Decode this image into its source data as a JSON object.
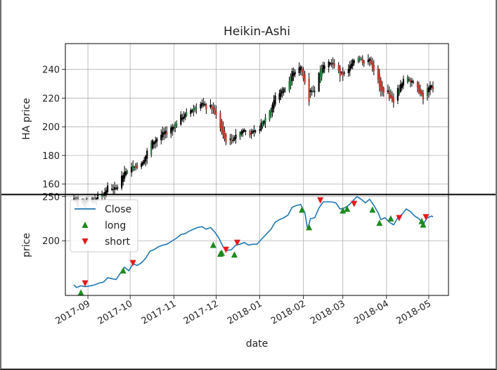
{
  "chart_data": [
    {
      "type": "candlestick",
      "title": "Heikin-Ashi",
      "ylabel": "HA price",
      "ylim": [
        153,
        258
      ],
      "yticks": [
        160,
        180,
        200,
        220,
        240
      ],
      "grid": true,
      "colors": {
        "body": "#000000",
        "bear_body": "#c0392b",
        "bull_accent": "#1e7b3a"
      }
    },
    {
      "type": "line",
      "ylabel": "price",
      "xlabel": "date",
      "ylim": [
        138,
        252
      ],
      "yticks": [
        200,
        250
      ],
      "grid": true,
      "legend": {
        "position": "upper-left",
        "entries": [
          "Close",
          "long",
          "short"
        ]
      },
      "x_tick_labels": [
        "2017-09",
        "2017-10",
        "2017-11",
        "2017-12",
        "2018-01",
        "2018-02",
        "2018-03",
        "2018-04",
        "2018-05"
      ],
      "x_tick_dates": [
        "2017-09-01",
        "2017-10-01",
        "2017-11-01",
        "2017-12-01",
        "2018-01-01",
        "2018-02-01",
        "2018-03-01",
        "2018-04-01",
        "2018-05-01"
      ],
      "x_range": [
        "2017-08-16",
        "2018-05-15"
      ],
      "series": [
        {
          "name": "Close",
          "color": "#1f77b4",
          "points": [
            [
              "2017-08-22",
              150
            ],
            [
              "2017-08-24",
              147
            ],
            [
              "2017-08-27",
              149
            ],
            [
              "2017-08-30",
              148
            ],
            [
              "2017-09-03",
              149
            ],
            [
              "2017-09-06",
              150
            ],
            [
              "2017-09-09",
              152
            ],
            [
              "2017-09-12",
              153
            ],
            [
              "2017-09-15",
              158
            ],
            [
              "2017-09-18",
              157
            ],
            [
              "2017-09-21",
              156
            ],
            [
              "2017-09-24",
              163
            ],
            [
              "2017-09-27",
              170
            ],
            [
              "2017-09-30",
              166
            ],
            [
              "2017-10-03",
              174
            ],
            [
              "2017-10-06",
              172
            ],
            [
              "2017-10-09",
              175
            ],
            [
              "2017-10-12",
              180
            ],
            [
              "2017-10-15",
              188
            ],
            [
              "2017-10-18",
              190
            ],
            [
              "2017-10-21",
              193
            ],
            [
              "2017-10-24",
              195
            ],
            [
              "2017-10-27",
              196
            ],
            [
              "2017-10-30",
              199
            ],
            [
              "2017-11-03",
              203
            ],
            [
              "2017-11-06",
              207
            ],
            [
              "2017-11-09",
              208
            ],
            [
              "2017-11-12",
              211
            ],
            [
              "2017-11-15",
              213
            ],
            [
              "2017-11-18",
              215
            ],
            [
              "2017-11-21",
              216
            ],
            [
              "2017-11-24",
              213
            ],
            [
              "2017-11-27",
              215
            ],
            [
              "2017-11-30",
              210
            ],
            [
              "2017-12-03",
              203
            ],
            [
              "2017-12-06",
              193
            ],
            [
              "2017-12-09",
              189
            ],
            [
              "2017-12-12",
              190
            ],
            [
              "2017-12-15",
              195
            ],
            [
              "2017-12-18",
              196
            ],
            [
              "2017-12-21",
              198
            ],
            [
              "2017-12-24",
              195
            ],
            [
              "2017-12-27",
              196
            ],
            [
              "2017-12-30",
              196
            ],
            [
              "2018-01-03",
              203
            ],
            [
              "2018-01-06",
              208
            ],
            [
              "2018-01-09",
              213
            ],
            [
              "2018-01-12",
              221
            ],
            [
              "2018-01-15",
              224
            ],
            [
              "2018-01-18",
              226
            ],
            [
              "2018-01-21",
              229
            ],
            [
              "2018-01-24",
              238
            ],
            [
              "2018-01-27",
              240
            ],
            [
              "2018-01-30",
              241
            ],
            [
              "2018-02-02",
              232
            ],
            [
              "2018-02-04",
              213
            ],
            [
              "2018-02-06",
              225
            ],
            [
              "2018-02-09",
              226
            ],
            [
              "2018-02-12",
              237
            ],
            [
              "2018-02-15",
              244
            ],
            [
              "2018-02-18",
              244
            ],
            [
              "2018-02-21",
              244
            ],
            [
              "2018-02-24",
              243
            ],
            [
              "2018-02-27",
              236
            ],
            [
              "2018-03-02",
              237
            ],
            [
              "2018-03-05",
              240
            ],
            [
              "2018-03-08",
              245
            ],
            [
              "2018-03-11",
              250
            ],
            [
              "2018-03-14",
              247
            ],
            [
              "2018-03-17",
              243
            ],
            [
              "2018-03-20",
              247
            ],
            [
              "2018-03-23",
              240
            ],
            [
              "2018-03-26",
              232
            ],
            [
              "2018-03-28",
              224
            ],
            [
              "2018-03-31",
              226
            ],
            [
              "2018-04-03",
              221
            ],
            [
              "2018-04-06",
              218
            ],
            [
              "2018-04-09",
              226
            ],
            [
              "2018-04-12",
              230
            ],
            [
              "2018-04-15",
              236
            ],
            [
              "2018-04-18",
              233
            ],
            [
              "2018-04-21",
              228
            ],
            [
              "2018-04-24",
              225
            ],
            [
              "2018-04-27",
              219
            ],
            [
              "2018-04-30",
              226
            ],
            [
              "2018-05-03",
              228
            ],
            [
              "2018-05-04",
              227
            ]
          ]
        },
        {
          "name": "long",
          "color": "#1e8a1e",
          "marker": "triangle-up",
          "points": [
            [
              "2017-08-27",
              141
            ],
            [
              "2017-09-26",
              166
            ],
            [
              "2017-11-29",
              195
            ],
            [
              "2017-12-04",
              185
            ],
            [
              "2017-12-05",
              186
            ],
            [
              "2017-12-14",
              184
            ],
            [
              "2018-01-31",
              235
            ],
            [
              "2018-02-05",
              215
            ],
            [
              "2018-03-01",
              234
            ],
            [
              "2018-03-04",
              236
            ],
            [
              "2018-03-22",
              235
            ],
            [
              "2018-03-27",
              220
            ],
            [
              "2018-04-04",
              225
            ],
            [
              "2018-04-26",
              222
            ],
            [
              "2018-04-27",
              218
            ]
          ]
        },
        {
          "name": "short",
          "color": "#e31a1c",
          "marker": "triangle-down",
          "points": [
            [
              "2017-08-30",
              152
            ],
            [
              "2017-10-03",
              175
            ],
            [
              "2017-12-08",
              190
            ],
            [
              "2017-12-16",
              198
            ],
            [
              "2018-02-13",
              246
            ],
            [
              "2018-03-09",
              242
            ],
            [
              "2018-04-10",
              226
            ],
            [
              "2018-04-29",
              227
            ]
          ]
        }
      ]
    }
  ]
}
